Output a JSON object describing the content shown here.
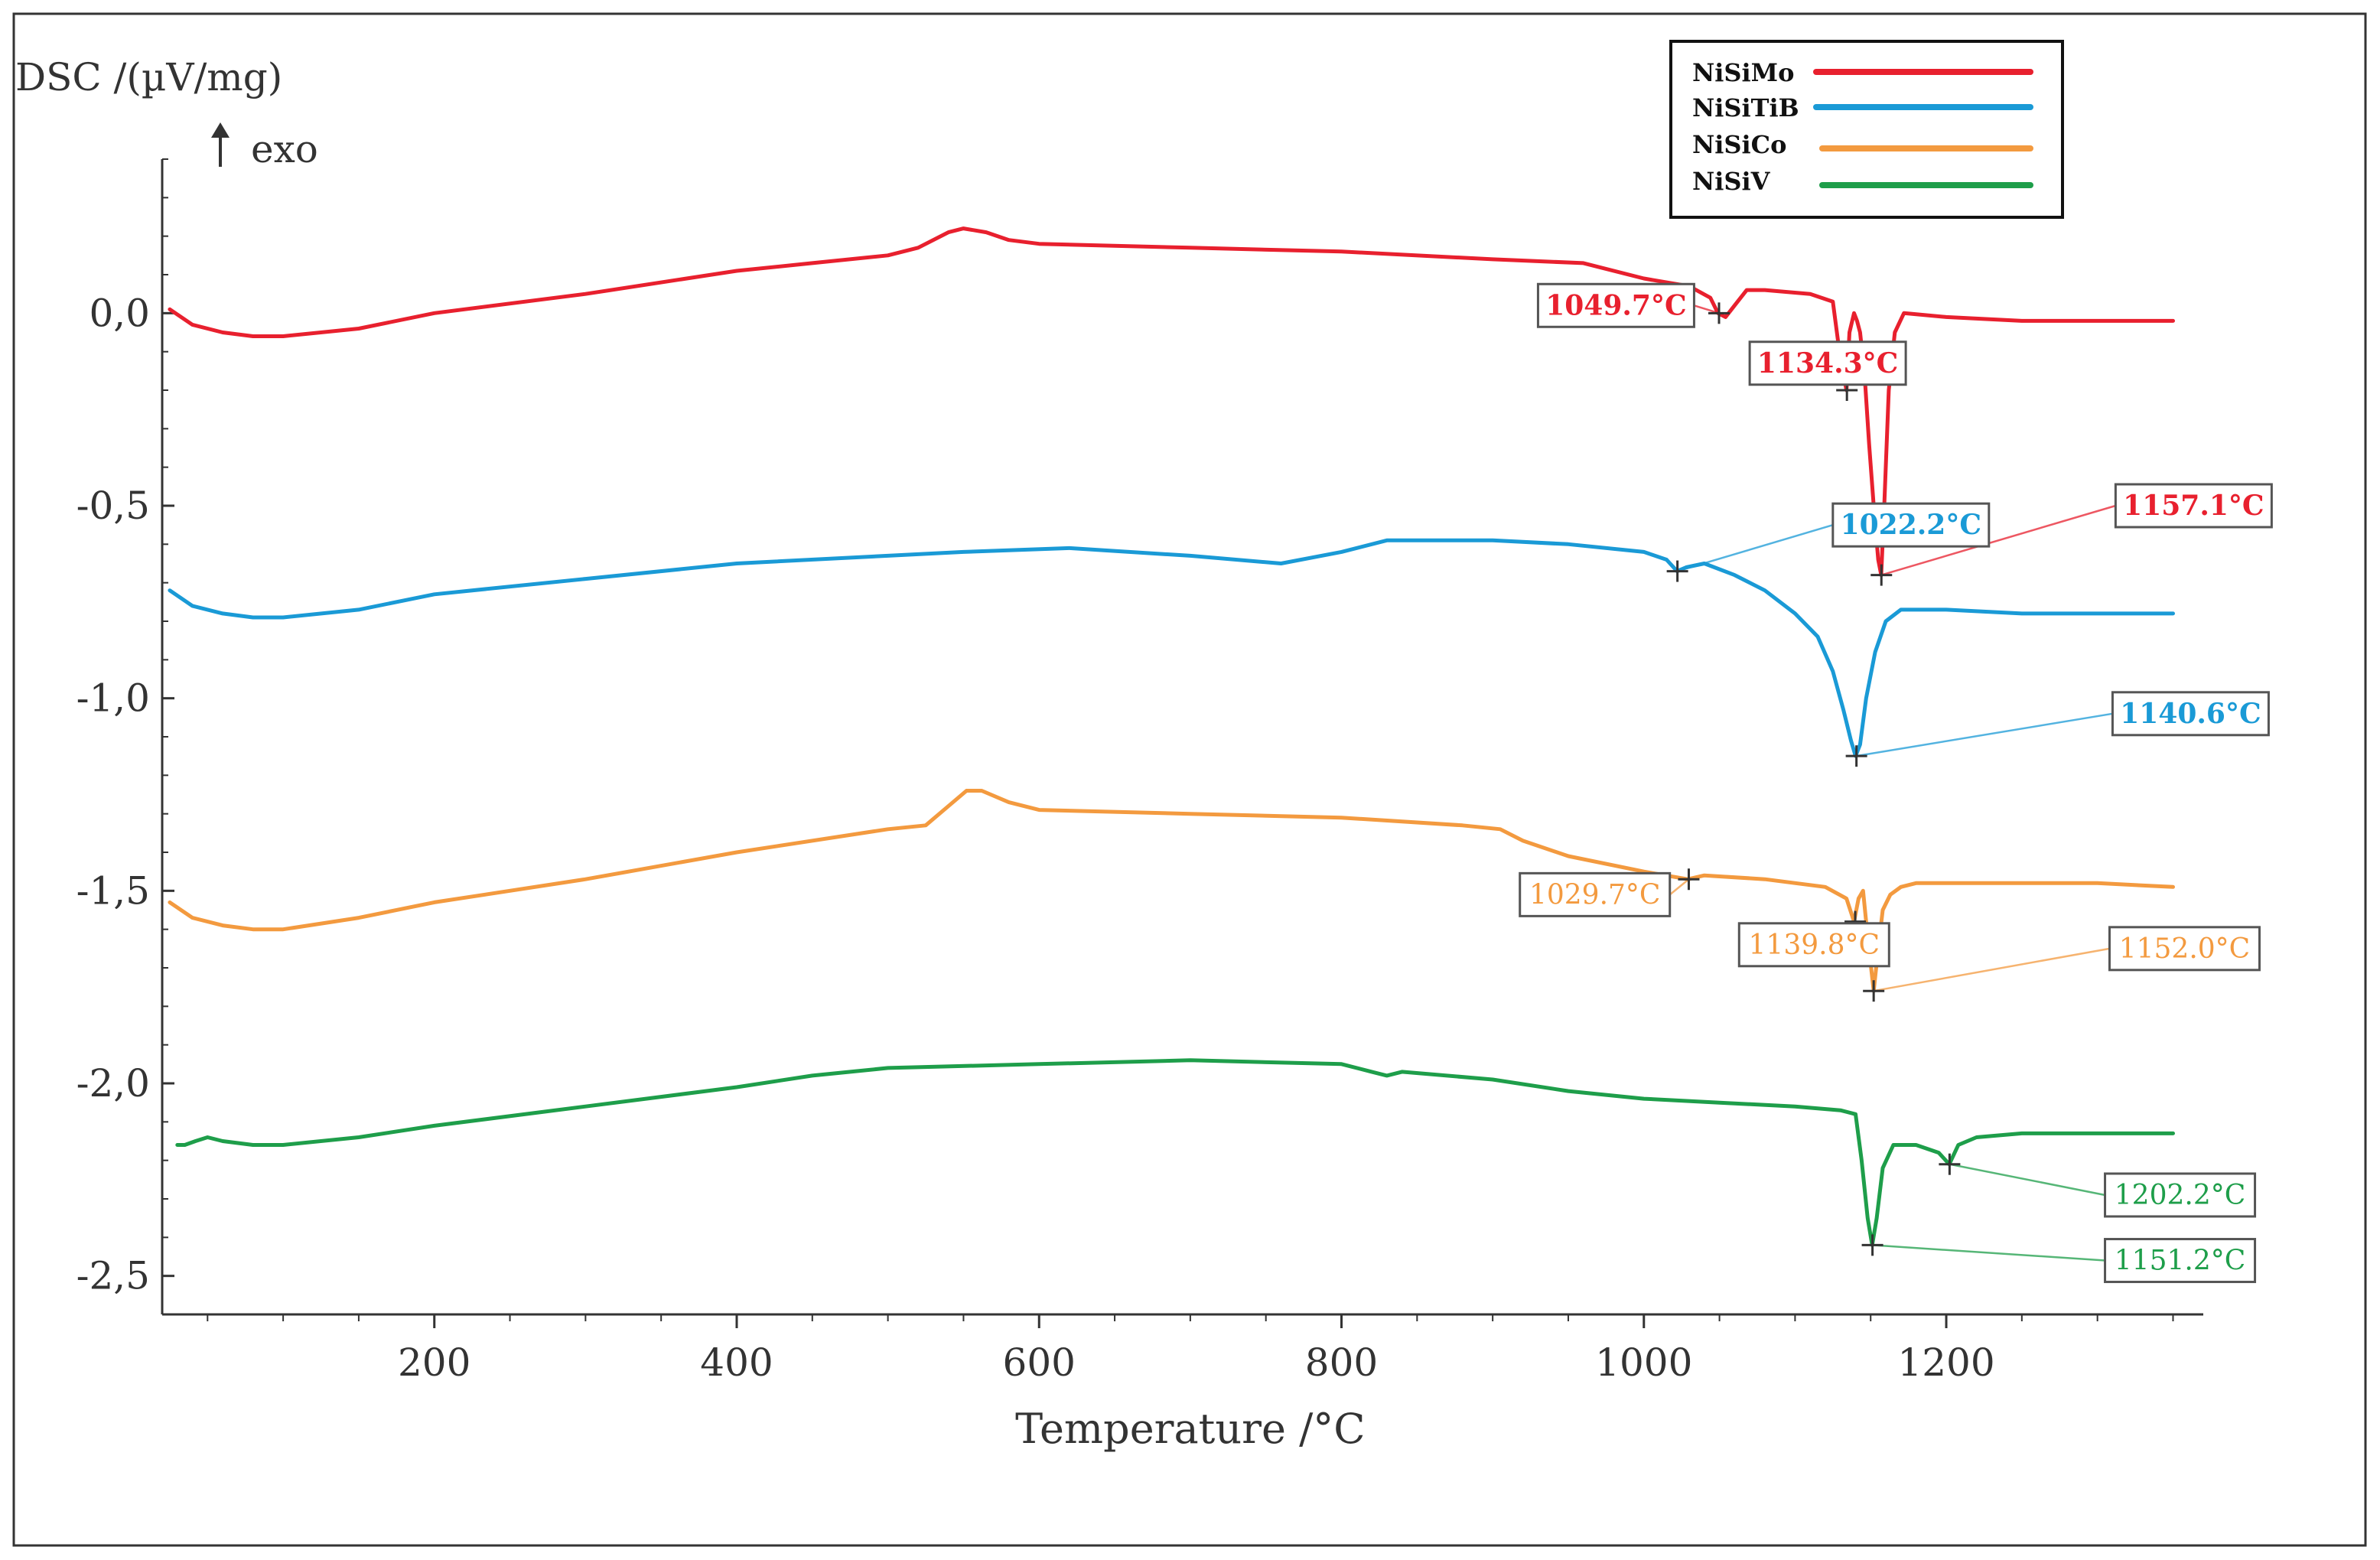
{
  "chart_data": {
    "type": "line",
    "title": "",
    "ylabel": "DSC /(µV/mg)",
    "exo_label": "exo",
    "xlabel": "Temperature /°C",
    "xlim": [
      20,
      1370
    ],
    "ylim": [
      -2.6,
      0.4
    ],
    "x_ticks": [
      200,
      400,
      600,
      800,
      1000,
      1200
    ],
    "x_tick_labels": [
      "200",
      "400",
      "600",
      "800",
      "1000",
      "1200"
    ],
    "y_ticks": [
      0.0,
      -0.5,
      -1.0,
      -1.5,
      -2.0,
      -2.5
    ],
    "y_tick_labels": [
      "0,0",
      "-0,5",
      "-1,0",
      "-1,5",
      "-2,0",
      "-2,5"
    ],
    "legend_position": "top-right",
    "series": [
      {
        "name": "NiSiMo",
        "color": "#e8202e",
        "points": [
          [
            25,
            0.01
          ],
          [
            40,
            -0.03
          ],
          [
            60,
            -0.05
          ],
          [
            80,
            -0.06
          ],
          [
            100,
            -0.06
          ],
          [
            150,
            -0.04
          ],
          [
            200,
            0.0
          ],
          [
            300,
            0.05
          ],
          [
            400,
            0.11
          ],
          [
            450,
            0.13
          ],
          [
            500,
            0.15
          ],
          [
            520,
            0.17
          ],
          [
            540,
            0.21
          ],
          [
            550,
            0.22
          ],
          [
            565,
            0.21
          ],
          [
            580,
            0.19
          ],
          [
            600,
            0.18
          ],
          [
            700,
            0.17
          ],
          [
            800,
            0.16
          ],
          [
            900,
            0.14
          ],
          [
            960,
            0.13
          ],
          [
            1000,
            0.09
          ],
          [
            1030,
            0.07
          ],
          [
            1044,
            0.04
          ],
          [
            1049,
            0.0
          ],
          [
            1054,
            -0.01
          ],
          [
            1060,
            0.02
          ],
          [
            1068,
            0.06
          ],
          [
            1080,
            0.06
          ],
          [
            1110,
            0.05
          ],
          [
            1125,
            0.03
          ],
          [
            1130,
            -0.12
          ],
          [
            1134,
            -0.2
          ],
          [
            1136,
            -0.05
          ],
          [
            1139,
            0.0
          ],
          [
            1141,
            -0.02
          ],
          [
            1143,
            -0.05
          ],
          [
            1146,
            -0.16
          ],
          [
            1149,
            -0.34
          ],
          [
            1152,
            -0.5
          ],
          [
            1155,
            -0.64
          ],
          [
            1157,
            -0.68
          ],
          [
            1159,
            -0.5
          ],
          [
            1162,
            -0.2
          ],
          [
            1166,
            -0.05
          ],
          [
            1172,
            0.0
          ],
          [
            1200,
            -0.01
          ],
          [
            1250,
            -0.02
          ],
          [
            1300,
            -0.02
          ],
          [
            1350,
            -0.02
          ]
        ]
      },
      {
        "name": "NiSiTiB",
        "color": "#1a9ad6",
        "points": [
          [
            25,
            -0.72
          ],
          [
            40,
            -0.76
          ],
          [
            60,
            -0.78
          ],
          [
            80,
            -0.79
          ],
          [
            100,
            -0.79
          ],
          [
            150,
            -0.77
          ],
          [
            200,
            -0.73
          ],
          [
            300,
            -0.69
          ],
          [
            400,
            -0.65
          ],
          [
            500,
            -0.63
          ],
          [
            550,
            -0.62
          ],
          [
            620,
            -0.61
          ],
          [
            700,
            -0.63
          ],
          [
            760,
            -0.65
          ],
          [
            800,
            -0.62
          ],
          [
            830,
            -0.59
          ],
          [
            850,
            -0.59
          ],
          [
            900,
            -0.59
          ],
          [
            950,
            -0.6
          ],
          [
            1000,
            -0.62
          ],
          [
            1015,
            -0.64
          ],
          [
            1022,
            -0.67
          ],
          [
            1028,
            -0.66
          ],
          [
            1040,
            -0.65
          ],
          [
            1060,
            -0.68
          ],
          [
            1080,
            -0.72
          ],
          [
            1100,
            -0.78
          ],
          [
            1115,
            -0.84
          ],
          [
            1125,
            -0.93
          ],
          [
            1132,
            -1.03
          ],
          [
            1137,
            -1.11
          ],
          [
            1140,
            -1.15
          ],
          [
            1143,
            -1.12
          ],
          [
            1147,
            -1.0
          ],
          [
            1153,
            -0.88
          ],
          [
            1160,
            -0.8
          ],
          [
            1170,
            -0.77
          ],
          [
            1200,
            -0.77
          ],
          [
            1250,
            -0.78
          ],
          [
            1300,
            -0.78
          ],
          [
            1350,
            -0.78
          ]
        ]
      },
      {
        "name": "NiSiCo",
        "color": "#f39a3f",
        "points": [
          [
            25,
            -1.53
          ],
          [
            40,
            -1.57
          ],
          [
            60,
            -1.59
          ],
          [
            80,
            -1.6
          ],
          [
            100,
            -1.6
          ],
          [
            150,
            -1.57
          ],
          [
            200,
            -1.53
          ],
          [
            300,
            -1.47
          ],
          [
            400,
            -1.4
          ],
          [
            500,
            -1.34
          ],
          [
            525,
            -1.33
          ],
          [
            540,
            -1.28
          ],
          [
            552,
            -1.24
          ],
          [
            562,
            -1.24
          ],
          [
            580,
            -1.27
          ],
          [
            600,
            -1.29
          ],
          [
            700,
            -1.3
          ],
          [
            800,
            -1.31
          ],
          [
            880,
            -1.33
          ],
          [
            905,
            -1.34
          ],
          [
            920,
            -1.37
          ],
          [
            950,
            -1.41
          ],
          [
            1000,
            -1.45
          ],
          [
            1029,
            -1.47
          ],
          [
            1040,
            -1.46
          ],
          [
            1080,
            -1.47
          ],
          [
            1120,
            -1.49
          ],
          [
            1134,
            -1.52
          ],
          [
            1139,
            -1.58
          ],
          [
            1142,
            -1.52
          ],
          [
            1145,
            -1.5
          ],
          [
            1148,
            -1.62
          ],
          [
            1152,
            -1.76
          ],
          [
            1155,
            -1.65
          ],
          [
            1158,
            -1.55
          ],
          [
            1163,
            -1.51
          ],
          [
            1170,
            -1.49
          ],
          [
            1180,
            -1.48
          ],
          [
            1250,
            -1.48
          ],
          [
            1300,
            -1.48
          ],
          [
            1350,
            -1.49
          ]
        ]
      },
      {
        "name": "NiSiV",
        "color": "#1e9e4a",
        "points": [
          [
            30,
            -2.16
          ],
          [
            35,
            -2.16
          ],
          [
            42,
            -2.15
          ],
          [
            50,
            -2.14
          ],
          [
            60,
            -2.15
          ],
          [
            80,
            -2.16
          ],
          [
            100,
            -2.16
          ],
          [
            150,
            -2.14
          ],
          [
            200,
            -2.11
          ],
          [
            300,
            -2.06
          ],
          [
            400,
            -2.01
          ],
          [
            450,
            -1.98
          ],
          [
            500,
            -1.96
          ],
          [
            600,
            -1.95
          ],
          [
            700,
            -1.94
          ],
          [
            800,
            -1.95
          ],
          [
            820,
            -1.97
          ],
          [
            830,
            -1.98
          ],
          [
            840,
            -1.97
          ],
          [
            900,
            -1.99
          ],
          [
            950,
            -2.02
          ],
          [
            1000,
            -2.04
          ],
          [
            1050,
            -2.05
          ],
          [
            1100,
            -2.06
          ],
          [
            1130,
            -2.07
          ],
          [
            1140,
            -2.08
          ],
          [
            1144,
            -2.2
          ],
          [
            1148,
            -2.35
          ],
          [
            1151,
            -2.42
          ],
          [
            1154,
            -2.35
          ],
          [
            1158,
            -2.22
          ],
          [
            1165,
            -2.16
          ],
          [
            1180,
            -2.16
          ],
          [
            1195,
            -2.18
          ],
          [
            1202,
            -2.21
          ],
          [
            1208,
            -2.16
          ],
          [
            1220,
            -2.14
          ],
          [
            1250,
            -2.13
          ],
          [
            1300,
            -2.13
          ],
          [
            1350,
            -2.13
          ]
        ]
      }
    ],
    "annotations": [
      {
        "series": "NiSiMo",
        "label": "1049.7°C",
        "x": 1049.7,
        "y": 0.0,
        "box_x": 930,
        "box_y": 0.02,
        "color": "#e8202e",
        "bold": true
      },
      {
        "series": "NiSiMo",
        "label": "1134.3°C",
        "x": 1134.3,
        "y": -0.2,
        "box_x": 1070,
        "box_y": -0.13,
        "color": "#e8202e",
        "bold": true
      },
      {
        "series": "NiSiMo",
        "label": "1157.1°C",
        "x": 1157.1,
        "y": -0.68,
        "box_x": 1312,
        "box_y": -0.5,
        "color": "#e8202e",
        "bold": true
      },
      {
        "series": "NiSiTiB",
        "label": "1022.2°C",
        "x": 1022.2,
        "y": -0.67,
        "box_x": 1125,
        "box_y": -0.55,
        "color": "#1a9ad6",
        "bold": true
      },
      {
        "series": "NiSiTiB",
        "label": "1140.6°C",
        "x": 1140.6,
        "y": -1.15,
        "box_x": 1310,
        "box_y": -1.04,
        "color": "#1a9ad6",
        "bold": true
      },
      {
        "series": "NiSiCo",
        "label": "1029.7°C",
        "x": 1029.7,
        "y": -1.47,
        "box_x": 918,
        "box_y": -1.51,
        "color": "#f39a3f",
        "bold": false
      },
      {
        "series": "NiSiCo",
        "label": "1139.8°C",
        "x": 1139.8,
        "y": -1.58,
        "box_x": 1063,
        "box_y": -1.64,
        "color": "#f39a3f",
        "bold": false
      },
      {
        "series": "NiSiCo",
        "label": "1152.0°C",
        "x": 1152.0,
        "y": -1.76,
        "box_x": 1308,
        "box_y": -1.65,
        "color": "#f39a3f",
        "bold": false
      },
      {
        "series": "NiSiV",
        "label": "1202.2°C",
        "x": 1202.2,
        "y": -2.21,
        "box_x": 1305,
        "box_y": -2.29,
        "color": "#1e9e4a",
        "bold": false
      },
      {
        "series": "NiSiV",
        "label": "1151.2°C",
        "x": 1151.2,
        "y": -2.42,
        "box_x": 1305,
        "box_y": -2.46,
        "color": "#1e9e4a",
        "bold": false
      }
    ]
  }
}
